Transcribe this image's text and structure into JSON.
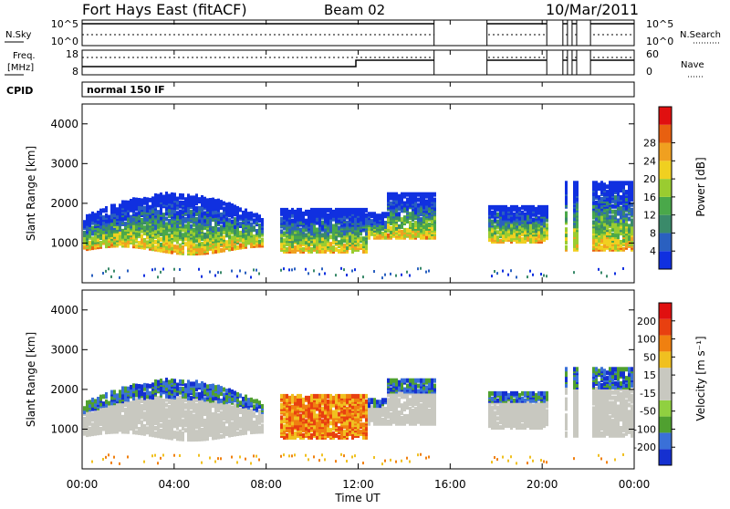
{
  "header": {
    "station": "Fort Hays East (fitACF)",
    "beam": "Beam 02",
    "date": "10/Mar/2011"
  },
  "strips": {
    "nsky_label": "N.Sky",
    "nsky_ticks": [
      "10^5",
      "10^0"
    ],
    "nsearch_label": "N.Search",
    "nsearch_ticks": [
      "10^5",
      "10^0"
    ],
    "freq_label": "Freq.",
    "freq_unit": "[MHz]",
    "freq_ticks": [
      "18",
      "8"
    ],
    "nave_label": "Nave",
    "nave_ticks": [
      "60",
      "0"
    ],
    "cpid_label": "CPID",
    "cpid_value": "normal 150 IF"
  },
  "axes": {
    "x_ticks": [
      "00:00",
      "04:00",
      "08:00",
      "12:00",
      "16:00",
      "20:00",
      "00:00"
    ],
    "x_label": "Time UT",
    "y_ticks": [
      "1000",
      "2000",
      "3000",
      "4000"
    ],
    "y_label": "Slant Range [km]"
  },
  "colorbars": {
    "power": {
      "label": "Power [dB]",
      "ticks": [
        "4",
        "8",
        "12",
        "16",
        "20",
        "24",
        "28"
      ],
      "colors": [
        "#1030e0",
        "#2a60c0",
        "#3a8a6a",
        "#4aa84a",
        "#9acc30",
        "#f0d020",
        "#f0a020",
        "#e86010",
        "#e01010"
      ]
    },
    "velocity": {
      "label": "Velocity [m s⁻¹]",
      "ticks": [
        "200",
        "100",
        "50",
        "15",
        "-15",
        "-50",
        "-100",
        "-200"
      ],
      "colors": [
        "#1530d0",
        "#3a70d8",
        "#50a030",
        "#90d040",
        "#c8c8c0",
        "#c8c8c0",
        "#f0c020",
        "#f08010",
        "#e84010",
        "#e01010"
      ]
    }
  },
  "chart_data": [
    {
      "type": "heatmap",
      "name": "power",
      "x_range_hours": [
        0,
        24
      ],
      "ylim": [
        0,
        4500
      ],
      "data_gaps_hours": [
        [
          15.3,
          17.6
        ],
        [
          20.2,
          20.9
        ],
        [
          21.1,
          21.3
        ],
        [
          21.5,
          22.1
        ]
      ]
    },
    {
      "type": "heatmap",
      "name": "velocity",
      "x_range_hours": [
        0,
        24
      ],
      "ylim": [
        0,
        4500
      ],
      "data_gaps_hours": [
        [
          15.3,
          17.6
        ],
        [
          20.2,
          20.9
        ],
        [
          21.1,
          21.3
        ],
        [
          21.5,
          22.1
        ]
      ]
    }
  ]
}
